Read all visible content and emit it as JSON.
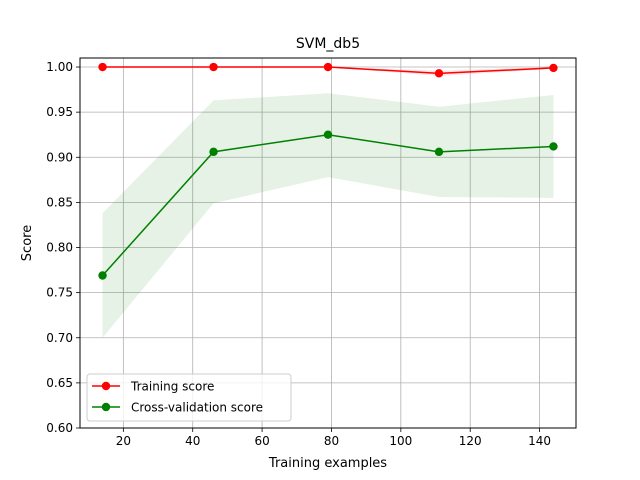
{
  "chart_data": {
    "type": "line",
    "title": "SVM_db5",
    "xlabel": "Training examples",
    "ylabel": "Score",
    "xlim": [
      7.5,
      150.5
    ],
    "ylim": [
      0.6,
      1.01
    ],
    "x_ticks": [
      20,
      40,
      60,
      80,
      100,
      120,
      140
    ],
    "x_tick_labels": [
      "20",
      "40",
      "60",
      "80",
      "100",
      "120",
      "140"
    ],
    "y_ticks": [
      0.6,
      0.65,
      0.7,
      0.75,
      0.8,
      0.85,
      0.9,
      0.95,
      1.0
    ],
    "y_tick_labels": [
      "0.60",
      "0.65",
      "0.70",
      "0.75",
      "0.80",
      "0.85",
      "0.90",
      "0.95",
      "1.00"
    ],
    "grid": true,
    "legend_position": "lower-left",
    "x": [
      14,
      46,
      79,
      111,
      144
    ],
    "series": [
      {
        "name": "Training score",
        "color": "#ff0000",
        "band_color": "#ff0000",
        "values": [
          1.0,
          1.0,
          1.0,
          0.993,
          0.999
        ],
        "band_lower": [
          1.0,
          1.0,
          1.0,
          0.99,
          0.998
        ],
        "band_upper": [
          1.0,
          1.0,
          1.0,
          0.996,
          1.0
        ]
      },
      {
        "name": "Cross-validation score",
        "color": "#008000",
        "band_color": "#008000",
        "values": [
          0.769,
          0.906,
          0.925,
          0.906,
          0.912
        ],
        "band_lower": [
          0.7,
          0.849,
          0.878,
          0.856,
          0.855
        ],
        "band_upper": [
          0.838,
          0.963,
          0.971,
          0.956,
          0.969
        ]
      }
    ]
  }
}
